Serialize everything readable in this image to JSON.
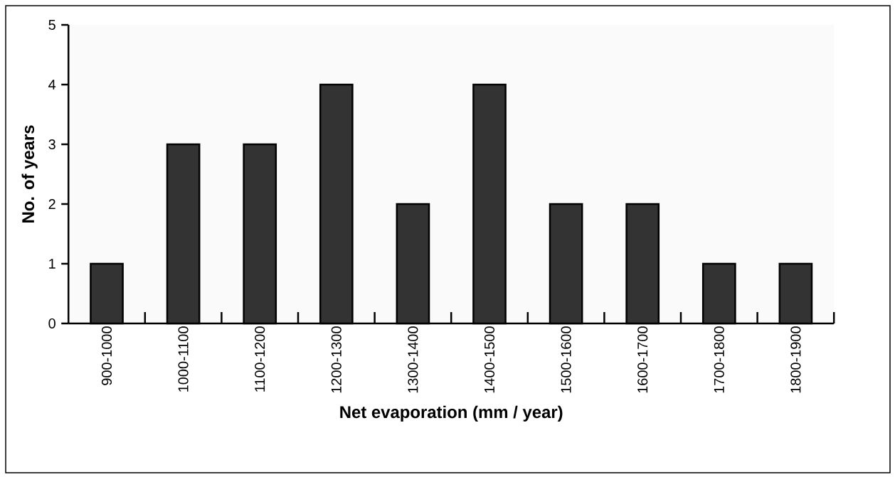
{
  "chart_data": {
    "type": "bar",
    "xlabel": "Net evaporation (mm / year)",
    "ylabel": "No. of years",
    "categories": [
      "900-1000",
      "1000-1100",
      "1100-1200",
      "1200-1300",
      "1300-1400",
      "1400-1500",
      "1500-1600",
      "1600-1700",
      "1700-1800",
      "1800-1900"
    ],
    "values": [
      1,
      3,
      3,
      4,
      2,
      4,
      2,
      2,
      1,
      1
    ],
    "color": "#333333",
    "ylim": [
      0,
      5
    ],
    "yticks": [
      0,
      1,
      2,
      3,
      4,
      5
    ]
  }
}
